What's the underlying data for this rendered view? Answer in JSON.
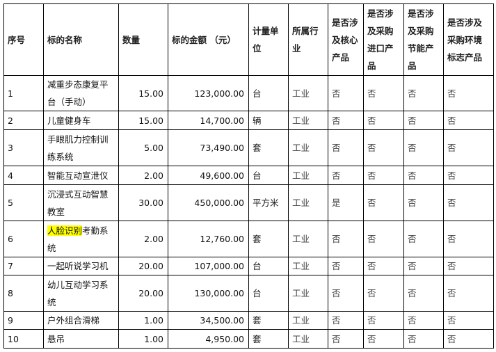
{
  "headers": [
    "序号",
    "标的名称",
    "数量",
    "标的金额 （元）",
    "计量单位",
    "所属行业",
    "是否涉及核心产品",
    "是否涉及采购进口产品",
    "是否涉及采购节能产品",
    "是否涉及采购环境标志产品"
  ],
  "rows": [
    {
      "no": "1",
      "name": "减重步态康复平台（手动）",
      "qty": "15.00",
      "amount": "123,000.00",
      "unit": "台",
      "industry": "工业",
      "core": "否",
      "import": "否",
      "energy": "否",
      "env": "否"
    },
    {
      "no": "2",
      "name": "儿童健身车",
      "qty": "15.00",
      "amount": "14,700.00",
      "unit": "辆",
      "industry": "工业",
      "core": "否",
      "import": "否",
      "energy": "否",
      "env": "否"
    },
    {
      "no": "3",
      "name": "手眼肌力控制训练系统",
      "qty": "5.00",
      "amount": "73,490.00",
      "unit": "套",
      "industry": "工业",
      "core": "否",
      "import": "否",
      "energy": "否",
      "env": "否"
    },
    {
      "no": "4",
      "name": "智能互动宣泄仪",
      "qty": "2.00",
      "amount": "49,600.00",
      "unit": "台",
      "industry": "工业",
      "core": "否",
      "import": "否",
      "energy": "否",
      "env": "否"
    },
    {
      "no": "5",
      "name": "沉浸式互动智慧教室",
      "qty": "30.00",
      "amount": "450,000.00",
      "unit": "平方米",
      "industry": "工业",
      "core": "是",
      "import": "否",
      "energy": "否",
      "env": "否"
    },
    {
      "no": "6",
      "name_highlight": "人脸识别",
      "name": "考勤系统",
      "qty": "2.00",
      "amount": "12,760.00",
      "unit": "套",
      "industry": "工业",
      "core": "否",
      "import": "否",
      "energy": "否",
      "env": "否"
    },
    {
      "no": "7",
      "name": "一起听说学习机",
      "qty": "20.00",
      "amount": "107,000.00",
      "unit": "台",
      "industry": "工业",
      "core": "否",
      "import": "否",
      "energy": "否",
      "env": "否"
    },
    {
      "no": "8",
      "name": "幼儿互动学习系统",
      "qty": "20.00",
      "amount": "130,000.00",
      "unit": "台",
      "industry": "工业",
      "core": "否",
      "import": "否",
      "energy": "否",
      "env": "否"
    },
    {
      "no": "9",
      "name": "户外组合滑梯",
      "qty": "1.00",
      "amount": "34,500.00",
      "unit": "套",
      "industry": "工业",
      "core": "否",
      "import": "否",
      "energy": "否",
      "env": "否"
    },
    {
      "no": "10",
      "name": "悬吊",
      "qty": "1.00",
      "amount": "4,950.00",
      "unit": "套",
      "industry": "工业",
      "core": "否",
      "import": "否",
      "energy": "否",
      "env": "否"
    }
  ],
  "colors": {
    "highlight": "#ffff00",
    "border": "#000000"
  }
}
